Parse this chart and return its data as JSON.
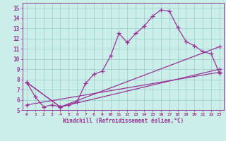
{
  "xlabel": "Windchill (Refroidissement éolien,°C)",
  "bg_color": "#cceee8",
  "line_color": "#993399",
  "grid_color": "#99cccc",
  "xlim": [
    -0.5,
    23.5
  ],
  "ylim": [
    5,
    15.5
  ],
  "xticks": [
    0,
    1,
    2,
    3,
    4,
    5,
    6,
    7,
    8,
    9,
    10,
    11,
    12,
    13,
    14,
    15,
    16,
    17,
    18,
    19,
    20,
    21,
    22,
    23
  ],
  "yticks": [
    5,
    6,
    7,
    8,
    9,
    10,
    11,
    12,
    13,
    14,
    15
  ],
  "series1_x": [
    0,
    1,
    2,
    3,
    4,
    5,
    6,
    7,
    8,
    9,
    10,
    11,
    12,
    13,
    14,
    15,
    16,
    17,
    18,
    19,
    20,
    21,
    22,
    23
  ],
  "series1_y": [
    7.7,
    6.3,
    5.3,
    5.5,
    5.3,
    5.5,
    5.8,
    7.6,
    8.5,
    8.8,
    10.3,
    12.5,
    11.6,
    12.5,
    13.2,
    14.2,
    14.8,
    14.7,
    13.1,
    11.7,
    11.3,
    10.7,
    10.5,
    8.6
  ],
  "series2_x": [
    0,
    23
  ],
  "series2_y": [
    5.5,
    8.7
  ],
  "series3_x": [
    0,
    4,
    23
  ],
  "series3_y": [
    7.7,
    5.3,
    9.0
  ],
  "series4_x": [
    0,
    4,
    23
  ],
  "series4_y": [
    7.7,
    5.3,
    11.2
  ],
  "marker": "+",
  "markersize": 4,
  "linewidth": 0.9
}
